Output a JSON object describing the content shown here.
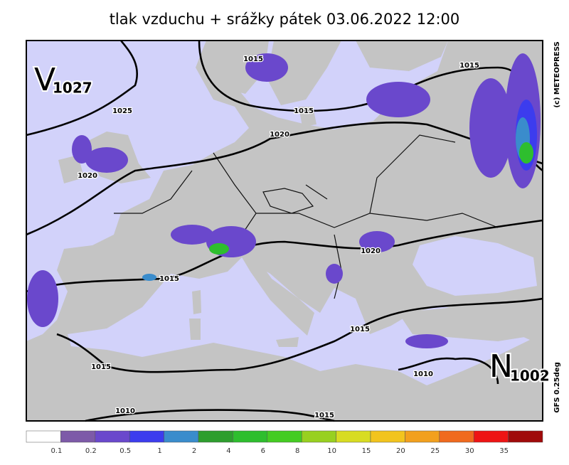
{
  "title": "tlak vzduchu + srážky   pátek 03.06.2022 12:00",
  "isobar_labels": [
    "1015",
    "1015",
    "1015",
    "1020",
    "1025",
    "1020",
    "1015",
    "1020",
    "1015",
    "1015",
    "1010",
    "1010",
    "1015"
  ],
  "pressure_centers": [
    {
      "letter": "V",
      "value": "1027"
    },
    {
      "letter": "N",
      "value": "1002"
    }
  ],
  "credits": [
    "(c) METEOPRESS",
    "GFS 0.25deg"
  ],
  "legend": {
    "colors": [
      "#ffffff",
      "#7d5aa8",
      "#6a48cc",
      "#3c3cee",
      "#3a8ccc",
      "#2e9e2e",
      "#2ebe2e",
      "#44cc22",
      "#98d020",
      "#d8dc22",
      "#f2c41e",
      "#f2a01e",
      "#f06a1e",
      "#ee1414",
      "#a00a0a"
    ],
    "labels": [
      "0.1",
      "0.2",
      "0.5",
      "1",
      "2",
      "4",
      "6",
      "8",
      "10",
      "15",
      "20",
      "25",
      "30",
      "35"
    ]
  }
}
